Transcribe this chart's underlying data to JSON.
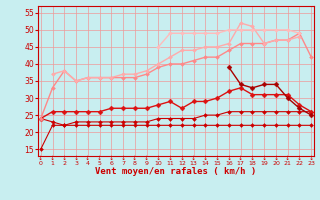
{
  "x": [
    0,
    1,
    2,
    3,
    4,
    5,
    6,
    7,
    8,
    9,
    10,
    11,
    12,
    13,
    14,
    15,
    16,
    17,
    18,
    19,
    20,
    21,
    22,
    23
  ],
  "series": [
    {
      "y": [
        15,
        22,
        22,
        22,
        22,
        22,
        22,
        22,
        22,
        22,
        22,
        22,
        22,
        22,
        22,
        22,
        22,
        22,
        22,
        22,
        22,
        22,
        22,
        22
      ],
      "color": "#cc0000",
      "marker": "D",
      "lw": 0.8,
      "ms": 2.0
    },
    {
      "y": [
        24,
        23,
        22,
        23,
        23,
        23,
        23,
        23,
        23,
        23,
        24,
        24,
        24,
        24,
        25,
        25,
        26,
        26,
        26,
        26,
        26,
        26,
        26,
        26
      ],
      "color": "#cc0000",
      "marker": "D",
      "lw": 0.8,
      "ms": 2.0
    },
    {
      "y": [
        24,
        26,
        26,
        26,
        26,
        26,
        27,
        27,
        27,
        27,
        28,
        29,
        27,
        29,
        29,
        30,
        32,
        33,
        31,
        31,
        31,
        31,
        28,
        26
      ],
      "color": "#dd1111",
      "marker": "D",
      "lw": 1.0,
      "ms": 2.5
    },
    {
      "y": [
        null,
        null,
        null,
        null,
        null,
        null,
        null,
        null,
        null,
        null,
        null,
        null,
        null,
        null,
        null,
        null,
        39,
        34,
        33,
        34,
        34,
        30,
        27,
        25
      ],
      "color": "#aa0000",
      "marker": "D",
      "lw": 1.0,
      "ms": 2.5
    },
    {
      "y": [
        24,
        33,
        38,
        35,
        36,
        36,
        36,
        36,
        36,
        37,
        39,
        40,
        40,
        41,
        42,
        42,
        44,
        46,
        46,
        46,
        47,
        47,
        49,
        42
      ],
      "color": "#ff8888",
      "marker": "D",
      "lw": 1.0,
      "ms": 2.0
    },
    {
      "y": [
        null,
        37,
        38,
        35,
        36,
        36,
        36,
        37,
        37,
        38,
        40,
        42,
        44,
        44,
        45,
        45,
        46,
        52,
        51,
        46,
        47,
        47,
        48,
        null
      ],
      "color": "#ffaaaa",
      "marker": "D",
      "lw": 1.0,
      "ms": 2.0
    },
    {
      "y": [
        null,
        null,
        null,
        null,
        null,
        null,
        null,
        null,
        null,
        null,
        45,
        49,
        49,
        49,
        49,
        49,
        50,
        50,
        50,
        50,
        50,
        50,
        49,
        null
      ],
      "color": "#ffbbbb",
      "marker": "D",
      "lw": 1.0,
      "ms": 2.0
    }
  ],
  "xlim": [
    -0.2,
    23.2
  ],
  "ylim": [
    13,
    57
  ],
  "yticks": [
    15,
    20,
    25,
    30,
    35,
    40,
    45,
    50,
    55
  ],
  "xticks": [
    0,
    1,
    2,
    3,
    4,
    5,
    6,
    7,
    8,
    9,
    10,
    11,
    12,
    13,
    14,
    15,
    16,
    17,
    18,
    19,
    20,
    21,
    22,
    23
  ],
  "xlabel": "Vent moyen/en rafales ( km/h )",
  "bg_color": "#c8eef0",
  "grid_color": "#ee9999",
  "tick_color": "#cc0000",
  "label_color": "#cc0000",
  "arrow_char": "↓"
}
